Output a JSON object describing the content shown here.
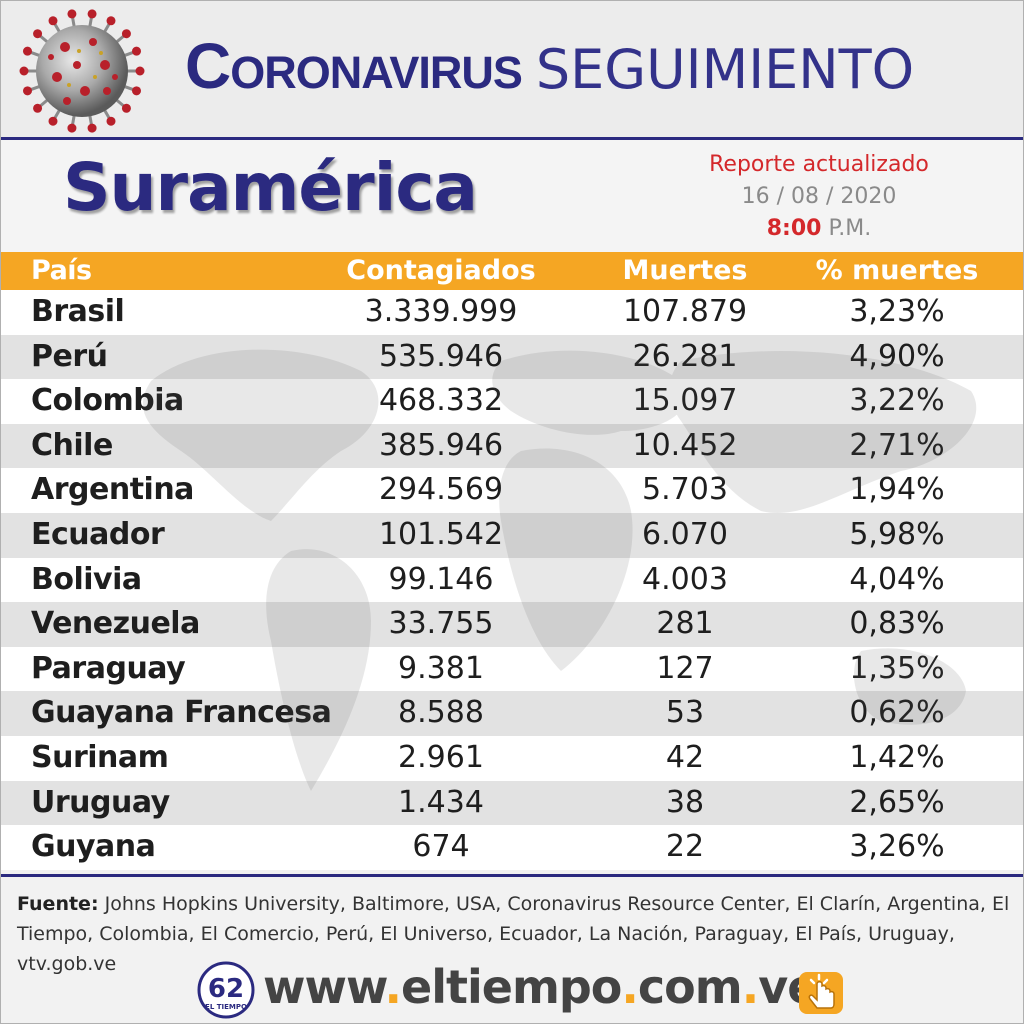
{
  "header": {
    "title_bold": "Coronavirus",
    "title_light": "SEGUIMIENTO",
    "region": "Suramérica",
    "report_label": "Reporte actualizado",
    "report_date": "16 / 08 / 2020",
    "report_time": "8:00",
    "report_period": "P.M."
  },
  "table": {
    "columns": [
      "País",
      "Contagiados",
      "Muertes",
      "% muertes"
    ],
    "rows": [
      [
        "Brasil",
        "3.339.999",
        "107.879",
        "3,23%"
      ],
      [
        "Perú",
        "535.946",
        "26.281",
        "4,90%"
      ],
      [
        "Colombia",
        "468.332",
        "15.097",
        "3,22%"
      ],
      [
        "Chile",
        "385.946",
        "10.452",
        "2,71%"
      ],
      [
        "Argentina",
        "294.569",
        "5.703",
        "1,94%"
      ],
      [
        "Ecuador",
        "101.542",
        "6.070",
        "5,98%"
      ],
      [
        "Bolivia",
        "99.146",
        "4.003",
        "4,04%"
      ],
      [
        "Venezuela",
        "33.755",
        "281",
        "0,83%"
      ],
      [
        "Paraguay",
        "9.381",
        "127",
        "1,35%"
      ],
      [
        "Guayana Francesa",
        "8.588",
        "53",
        "0,62%"
      ],
      [
        "Surinam",
        "2.961",
        "42",
        "1,42%"
      ],
      [
        "Uruguay",
        "1.434",
        "38",
        "2,65%"
      ],
      [
        "Guyana",
        "674",
        "22",
        "3,26%"
      ]
    ]
  },
  "footer": {
    "source_label": "Fuente:",
    "source_text": " Johns Hopkins University, Baltimore, USA, Coronavirus Resource Center,  El Clarín, Argentina, El Tiempo, Colombia, El Comercio, Perú, El Universo, Ecuador, La Nación, Paraguay, El País, Uruguay, vtv.gob.ve",
    "url_parts": [
      "www",
      ".",
      "eltiempo",
      ".",
      "com",
      ".",
      "ve"
    ],
    "logo_number": "62",
    "logo_text": "EL TIEMPO"
  },
  "colors": {
    "brand_blue": "#2b2a80",
    "header_orange": "#f5a623",
    "accent_red": "#d4282b"
  },
  "icons": [
    "coronavirus-icon",
    "el-tiempo-logo-icon",
    "click-hand-icon"
  ]
}
